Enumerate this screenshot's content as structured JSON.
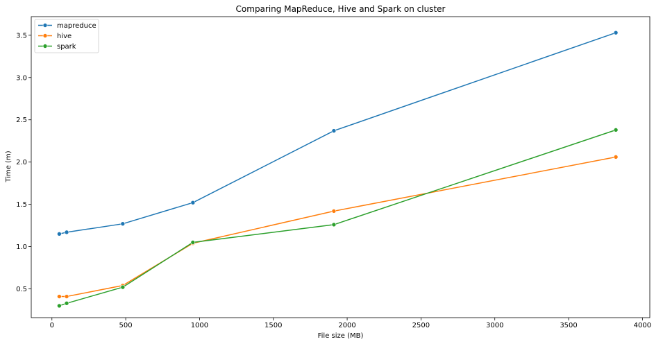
{
  "chart_data": {
    "type": "line",
    "title": "Comparing MapReduce, Hive and Spark on cluster",
    "xlabel": "File size (MB)",
    "ylabel": "Time (m)",
    "xlim": [
      -140,
      4050
    ],
    "ylim": [
      0.16,
      3.72
    ],
    "xticks": [
      0,
      500,
      1000,
      1500,
      2000,
      2500,
      3000,
      3500,
      4000
    ],
    "yticks": [
      0.5,
      1.0,
      1.5,
      2.0,
      2.5,
      3.0,
      3.5
    ],
    "xtick_labels": [
      "0",
      "500",
      "1000",
      "1500",
      "2000",
      "2500",
      "3000",
      "3500",
      "4000"
    ],
    "ytick_labels": [
      "0.5",
      "1.0",
      "1.5",
      "2.0",
      "2.5",
      "3.0",
      "3.5"
    ],
    "grid": false,
    "legend_position": "top-left",
    "x": [
      50,
      100,
      480,
      955,
      1910,
      3820
    ],
    "series": [
      {
        "name": "mapreduce",
        "color": "#1f77b4",
        "values": [
          1.15,
          1.17,
          1.27,
          1.52,
          2.37,
          3.53
        ]
      },
      {
        "name": "hive",
        "color": "#ff7f0e",
        "values": [
          0.41,
          0.41,
          0.54,
          1.04,
          1.42,
          2.06
        ]
      },
      {
        "name": "spark",
        "color": "#2ca02c",
        "values": [
          0.3,
          0.33,
          0.52,
          1.05,
          1.26,
          2.38
        ]
      }
    ]
  }
}
